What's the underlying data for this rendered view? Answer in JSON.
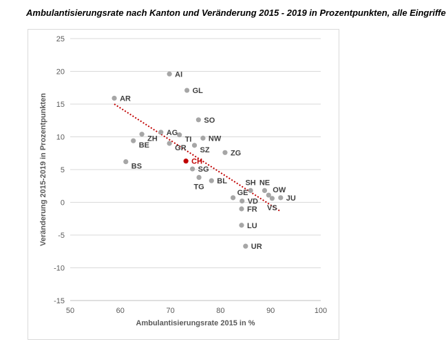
{
  "chart_data": {
    "type": "scatter",
    "title": "Ambulantisierungsrate nach Kanton und Veränderung 2015 - 2019 in Prozentpunkten, alle Eingriffe",
    "xlabel": "Ambulantisierungsrate 2015 in %",
    "ylabel": "Veränderung 2015-2019 in Prozentpunkten",
    "xlim": [
      50,
      100
    ],
    "ylim": [
      -15,
      25
    ],
    "xticks": [
      50,
      60,
      70,
      80,
      90,
      100
    ],
    "yticks": [
      -15,
      -10,
      -5,
      0,
      5,
      10,
      15,
      20,
      25
    ],
    "grid": "horizontal",
    "point_color": "#a6a6a6",
    "highlight_color": "#c00000",
    "trendline": {
      "style": "dotted",
      "color": "#c00000",
      "x": [
        58.8,
        92
      ],
      "y": [
        15.0,
        -1.4
      ]
    },
    "points": [
      {
        "label": "AI",
        "x": 69.8,
        "y": 19.6,
        "pos": "right"
      },
      {
        "label": "GL",
        "x": 73.3,
        "y": 17.1,
        "pos": "right"
      },
      {
        "label": "AR",
        "x": 58.8,
        "y": 15.9,
        "pos": "right"
      },
      {
        "label": "SO",
        "x": 75.6,
        "y": 12.6,
        "pos": "right"
      },
      {
        "label": "AG",
        "x": 68.1,
        "y": 10.7,
        "pos": "right"
      },
      {
        "label": "ZH",
        "x": 64.3,
        "y": 10.4,
        "pos": "right-below"
      },
      {
        "label": "TI",
        "x": 71.8,
        "y": 10.3,
        "pos": "right-below"
      },
      {
        "label": "NW",
        "x": 76.5,
        "y": 9.8,
        "pos": "right"
      },
      {
        "label": "BE",
        "x": 62.6,
        "y": 9.4,
        "pos": "right-below"
      },
      {
        "label": "GR",
        "x": 69.8,
        "y": 9.0,
        "pos": "right-below"
      },
      {
        "label": "SZ",
        "x": 74.8,
        "y": 8.7,
        "pos": "right-below"
      },
      {
        "label": "ZG",
        "x": 80.9,
        "y": 7.6,
        "pos": "right"
      },
      {
        "label": "BS",
        "x": 61.1,
        "y": 6.2,
        "pos": "right-below"
      },
      {
        "label": "CH",
        "x": 73.1,
        "y": 6.3,
        "pos": "right",
        "highlight": true
      },
      {
        "label": "SG",
        "x": 74.4,
        "y": 5.1,
        "pos": "right"
      },
      {
        "label": "TG",
        "x": 75.7,
        "y": 3.8,
        "pos": "below"
      },
      {
        "label": "BL",
        "x": 78.2,
        "y": 3.3,
        "pos": "right"
      },
      {
        "label": "SH",
        "x": 86.0,
        "y": 1.8,
        "pos": "above"
      },
      {
        "label": "NE",
        "x": 88.8,
        "y": 1.8,
        "pos": "above"
      },
      {
        "label": "OW",
        "x": 89.6,
        "y": 1.1,
        "pos": "right-above"
      },
      {
        "label": "GE",
        "x": 82.5,
        "y": 0.7,
        "pos": "right-above"
      },
      {
        "label": "JU",
        "x": 92.0,
        "y": 0.7,
        "pos": "right"
      },
      {
        "label": "VS",
        "x": 90.3,
        "y": 0.6,
        "pos": "below"
      },
      {
        "label": "VD",
        "x": 84.3,
        "y": 0.2,
        "pos": "right"
      },
      {
        "label": "FR",
        "x": 84.2,
        "y": -1.0,
        "pos": "right"
      },
      {
        "label": "LU",
        "x": 84.2,
        "y": -3.5,
        "pos": "right"
      },
      {
        "label": "UR",
        "x": 85.0,
        "y": -6.7,
        "pos": "right"
      }
    ]
  }
}
